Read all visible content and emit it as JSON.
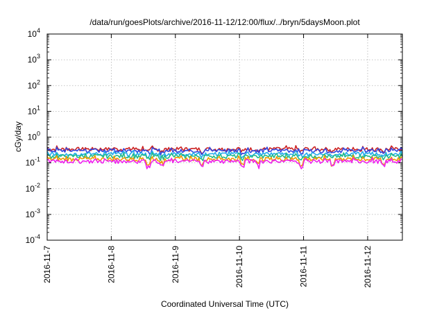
{
  "chart_data": {
    "type": "line",
    "title": "/data/run/goesPlots/archive/2016-11-12/12:00/flux/../bryn/5daysMoon.plot",
    "xlabel": "Coordinated Universal Time (UTC)",
    "ylabel": "cGy/day",
    "yscale": "log",
    "ylim": [
      0.0001,
      10000
    ],
    "y_ticks": [
      {
        "base": "10",
        "exp": "4"
      },
      {
        "base": "10",
        "exp": "3"
      },
      {
        "base": "10",
        "exp": "2"
      },
      {
        "base": "10",
        "exp": "1"
      },
      {
        "base": "10",
        "exp": "0"
      },
      {
        "base": "10",
        "exp": "-1"
      },
      {
        "base": "10",
        "exp": "-2"
      },
      {
        "base": "10",
        "exp": "-3"
      },
      {
        "base": "10",
        "exp": "-4"
      }
    ],
    "x_ticks": [
      "2016-11-7",
      "2016-11-8",
      "2016-11-9",
      "2016-11-10",
      "2016-11-11",
      "2016-11-12"
    ],
    "x_range_days": [
      "2016-11-7",
      "2016-11-12 13:00"
    ],
    "grid": true,
    "series": [
      {
        "color": "#cc2222",
        "level": 0.34
      },
      {
        "color": "#3344dd",
        "level": 0.3
      },
      {
        "color": "#22aaee",
        "level": 0.22
      },
      {
        "color": "#22bb88",
        "level": 0.18
      },
      {
        "color": "#ee9900",
        "level": 0.14
      },
      {
        "color": "#ee22ee",
        "level": 0.115
      }
    ],
    "dips_at": [
      "2016-11-8 14:00",
      "2016-11-8 19:00",
      "2016-11-9 10:00",
      "2016-11-10 01:00",
      "2016-11-10 07:00",
      "2016-11-10 23:00",
      "2016-11-11 11:00",
      "2016-11-12 06:00"
    ]
  }
}
